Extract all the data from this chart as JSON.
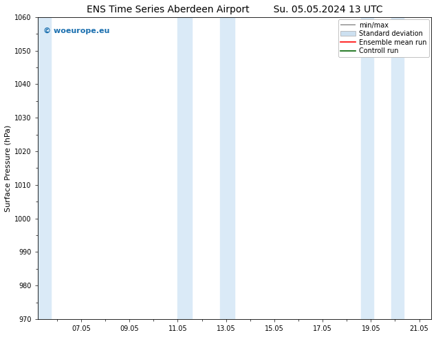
{
  "title_left": "ENS Time Series Aberdeen Airport",
  "title_right": "Su. 05.05.2024 13 UTC",
  "ylabel": "Surface Pressure (hPa)",
  "ylim": [
    970,
    1060
  ],
  "yticks": [
    970,
    980,
    990,
    1000,
    1010,
    1020,
    1030,
    1040,
    1050,
    1060
  ],
  "xlim_start": 5.2,
  "xlim_end": 21.5,
  "xtick_labels": [
    "07.05",
    "09.05",
    "11.05",
    "13.05",
    "15.05",
    "17.05",
    "19.05",
    "21.05"
  ],
  "xtick_positions": [
    7.0,
    9.0,
    11.0,
    13.0,
    15.0,
    17.0,
    19.0,
    21.0
  ],
  "shaded_bands": [
    {
      "xstart": 5.2,
      "xend": 5.75,
      "color": "#daeaf7"
    },
    {
      "xstart": 11.0,
      "xend": 11.6,
      "color": "#daeaf7"
    },
    {
      "xstart": 12.75,
      "xend": 13.35,
      "color": "#daeaf7"
    },
    {
      "xstart": 18.6,
      "xend": 19.1,
      "color": "#daeaf7"
    },
    {
      "xstart": 19.85,
      "xend": 20.35,
      "color": "#daeaf7"
    }
  ],
  "watermark_text": "© woeurope.eu",
  "watermark_color": "#1a6faf",
  "watermark_fontsize": 8,
  "legend_entries": [
    {
      "label": "min/max",
      "color": "#999999",
      "lw": 1.2
    },
    {
      "label": "Standard deviation",
      "color": "#cce0f0",
      "lw": 6
    },
    {
      "label": "Ensemble mean run",
      "color": "#ff0000",
      "lw": 1.2
    },
    {
      "label": "Controll run",
      "color": "#006400",
      "lw": 1.2
    }
  ],
  "bg_color": "#ffffff",
  "plot_bg_color": "#ffffff",
  "title_fontsize": 10,
  "tick_fontsize": 7,
  "ylabel_fontsize": 8,
  "legend_fontsize": 7
}
